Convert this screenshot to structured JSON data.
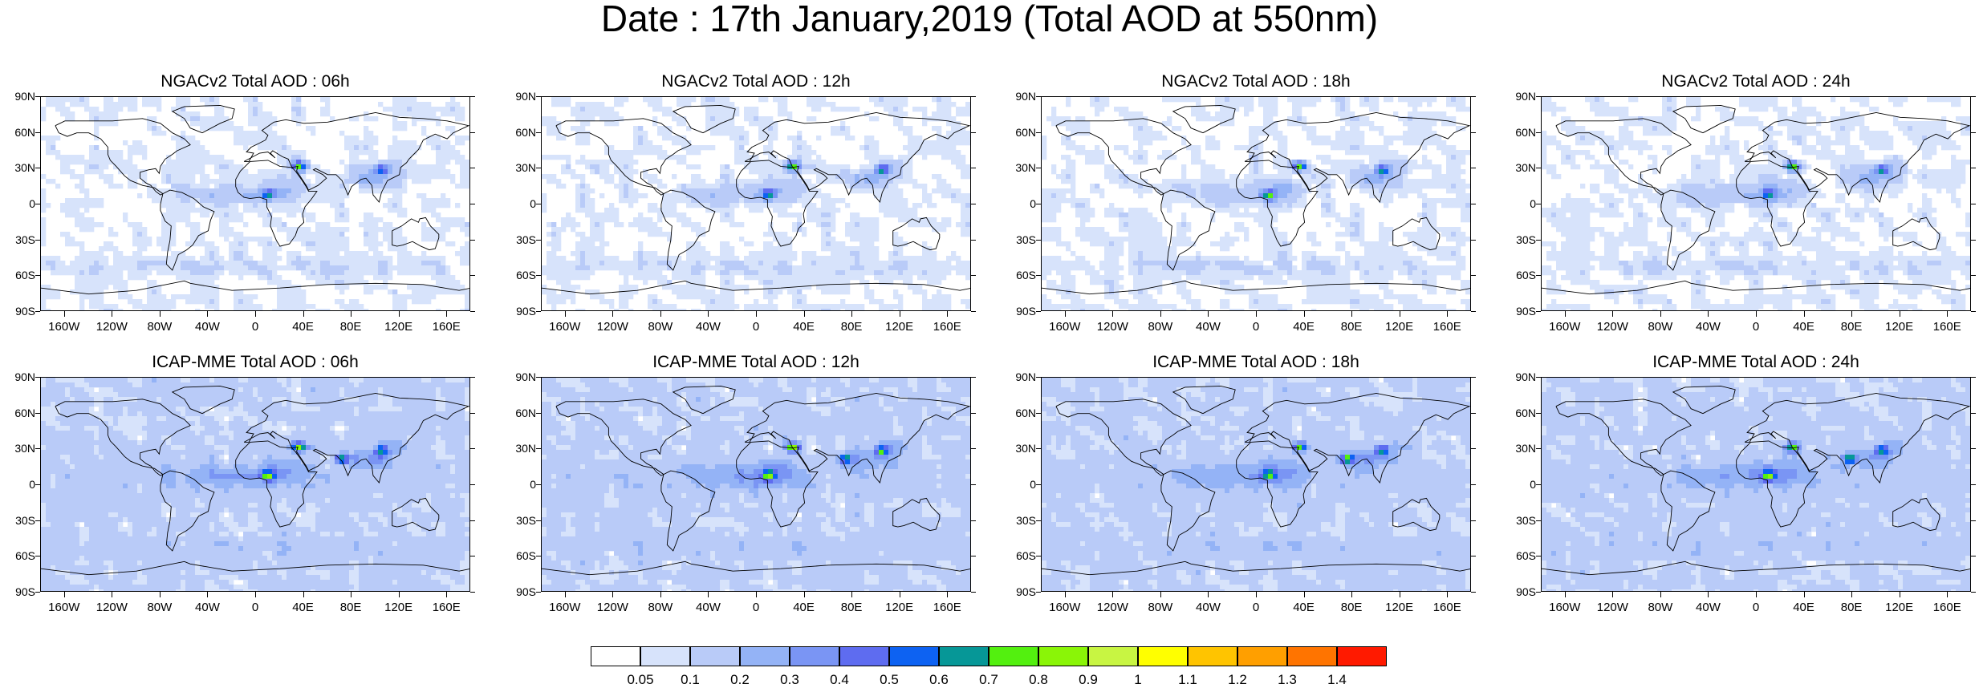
{
  "title": "Date : 17th January,2019 (Total AOD at 550nm)",
  "panels": [
    {
      "title": "NGACv2 Total AOD : 06h",
      "model": "ngac",
      "hour": 6
    },
    {
      "title": "NGACv2 Total AOD : 12h",
      "model": "ngac",
      "hour": 12
    },
    {
      "title": "NGACv2 Total AOD : 18h",
      "model": "ngac",
      "hour": 18
    },
    {
      "title": "NGACv2 Total AOD : 24h",
      "model": "ngac",
      "hour": 24
    },
    {
      "title": "ICAP-MME Total AOD : 06h",
      "model": "icap",
      "hour": 6
    },
    {
      "title": "ICAP-MME Total AOD : 12h",
      "model": "icap",
      "hour": 12
    },
    {
      "title": "ICAP-MME Total AOD : 18h",
      "model": "icap",
      "hour": 18
    },
    {
      "title": "ICAP-MME Total AOD : 24h",
      "model": "icap",
      "hour": 24
    }
  ],
  "lat_labels": [
    "90N",
    "60N",
    "30N",
    "0",
    "30S",
    "60S",
    "90S"
  ],
  "lon_labels": [
    "160W",
    "120W",
    "80W",
    "40W",
    "0",
    "40E",
    "80E",
    "120E",
    "160E"
  ],
  "colorbar": {
    "colors": [
      "#ffffff",
      "#d7e3fb",
      "#b9cbf8",
      "#94b3f6",
      "#7a95f4",
      "#5e6cf0",
      "#0d62f2",
      "#069797",
      "#53f00f",
      "#8af507",
      "#c8f542",
      "#ffff00",
      "#ffc400",
      "#ff9f00",
      "#ff7400",
      "#ff1a00"
    ],
    "labels": [
      "0.05",
      "0.1",
      "0.2",
      "0.3",
      "0.4",
      "0.5",
      "0.6",
      "0.7",
      "0.8",
      "0.9",
      "1",
      "1.1",
      "1.2",
      "1.3",
      "1.4"
    ]
  }
}
